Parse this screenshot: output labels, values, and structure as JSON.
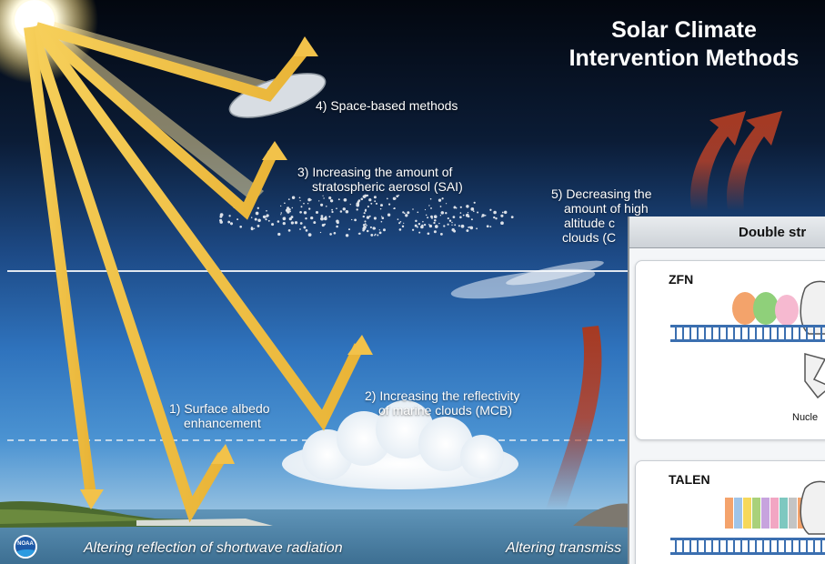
{
  "title": {
    "line1": "Solar Climate",
    "line2": "Intervention Methods"
  },
  "methods": [
    {
      "line1": "1) Surface albedo",
      "line2": "enhancement"
    },
    {
      "line1": "2) Increasing the reflectivity",
      "line2": "of marine clouds (MCB)"
    },
    {
      "line1": "3) Increasing the amount of",
      "line2": "stratospheric aerosol (SAI)"
    },
    {
      "line1": "4) Space-based methods"
    },
    {
      "line1": "5) Decreasing the",
      "line2": "amount of high",
      "line3": "altitude c",
      "line4": "clouds (C"
    }
  ],
  "footer": {
    "left": "Altering reflection of shortwave radiation",
    "right": "Altering transmiss"
  },
  "logo_text": "NOAA",
  "inset": {
    "header": "Double str",
    "zfn_label": "ZFN",
    "talen_label": "TALEN",
    "nuclease_label": "Nucle"
  },
  "colors": {
    "sky_top": "#050b18",
    "sky_mid": "#1f4f8c",
    "ocean": "#1b5fa5",
    "beam": "#f2c44a",
    "longwave": "#b5412a"
  }
}
